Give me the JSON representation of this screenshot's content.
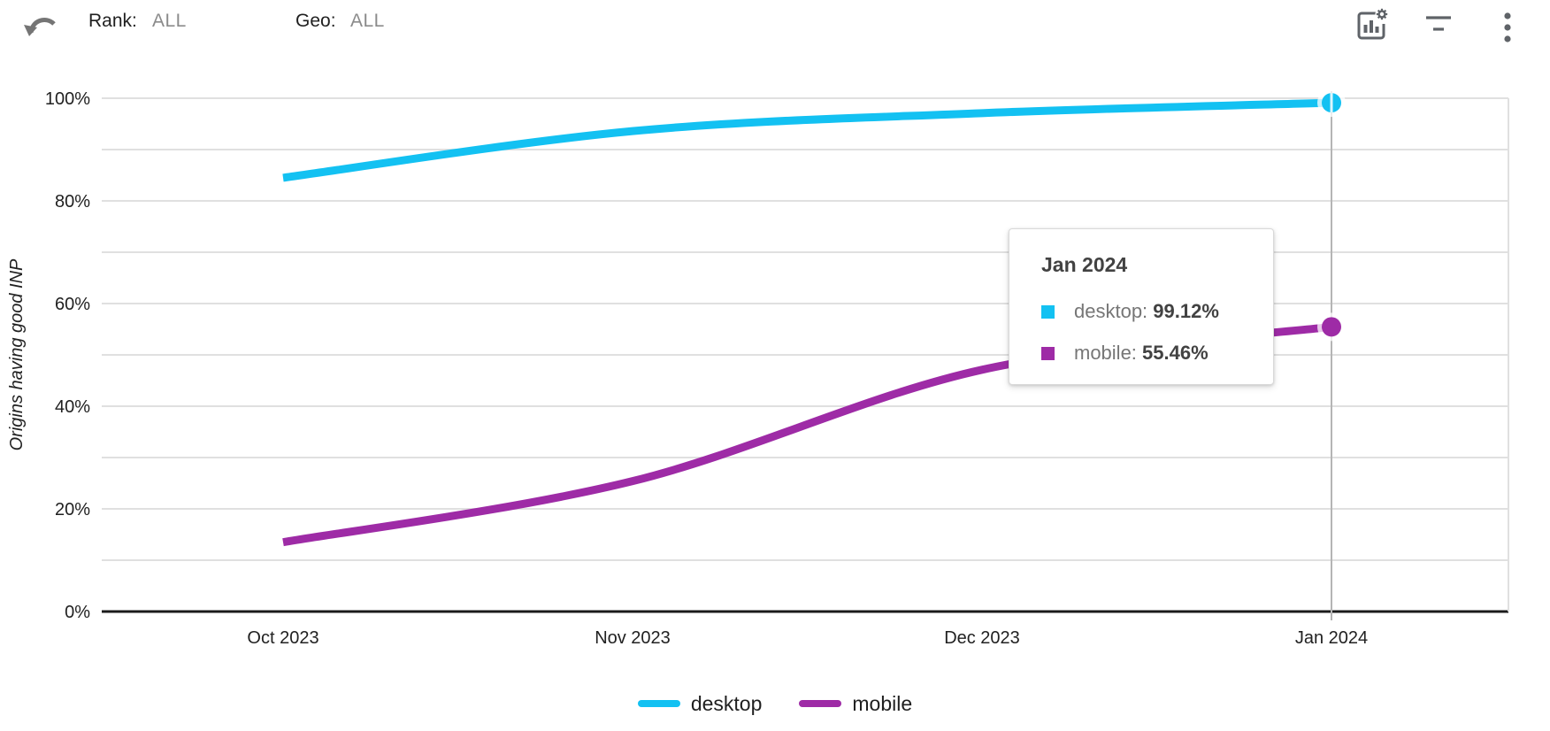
{
  "toolbar": {
    "rank_label": "Rank:",
    "rank_value": "ALL",
    "geo_label": "Geo:",
    "geo_value": "ALL",
    "icons": [
      "undo-icon",
      "chart-settings-icon",
      "filter-icon",
      "more-vert-icon"
    ],
    "icon_color": "#5f6368"
  },
  "chart_data": {
    "type": "line",
    "title": "",
    "ylabel": "Origins having good INP",
    "xlabel": "",
    "categories": [
      "Oct 2023",
      "Nov 2023",
      "Dec 2023",
      "Jan 2024"
    ],
    "series": [
      {
        "name": "desktop",
        "color": "#13c1f2",
        "values": [
          84.5,
          93.6,
          97.1,
          99.12
        ]
      },
      {
        "name": "mobile",
        "color": "#9e2ba6",
        "values": [
          13.5,
          25.4,
          47.1,
          55.46
        ]
      }
    ],
    "ylim": [
      0,
      100
    ],
    "y_tick_step": 10,
    "y_label_step": 20,
    "y_tick_suffix": "%",
    "grid": true,
    "legend_position": "bottom",
    "highlight_index": 3,
    "highlighted_category": "Jan 2024",
    "gridline_color": "#e0e0e0",
    "axis_color": "#1b1b1b",
    "crosshair_color": "#b5b5b5",
    "tick_label_color": "#212121"
  },
  "tooltip": {
    "title": "Jan 2024",
    "rows": [
      {
        "label": "desktop",
        "value": "99.12%",
        "color": "#13c1f2"
      },
      {
        "label": "mobile",
        "value": "55.46%",
        "color": "#9e2ba6"
      }
    ]
  }
}
